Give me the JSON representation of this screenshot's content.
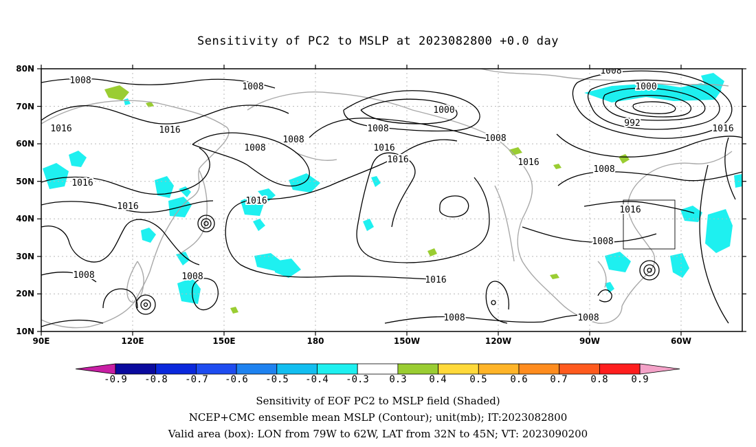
{
  "title": "Sensitivity of PC2 to MSLP at 2023082800 +0.0 day",
  "map": {
    "lat_labels": [
      "80N",
      "70N",
      "60N",
      "50N",
      "40N",
      "30N",
      "20N",
      "10N"
    ],
    "lon_labels": [
      "90E",
      "120E",
      "150E",
      "180",
      "150W",
      "120W",
      "90W",
      "60W"
    ],
    "lon_range_deg": [
      90,
      320
    ],
    "lat_range_deg": [
      10,
      80
    ],
    "grid": "dotted",
    "valid_box": {
      "lon": [
        "79W",
        "62W"
      ],
      "lat": [
        "32N",
        "45N"
      ]
    },
    "contour_labels": [
      "1008",
      "1008",
      "1000",
      "992",
      "1008",
      "1016",
      "1016",
      "1016",
      "1008",
      "1016",
      "1008",
      "1008",
      "1016",
      "1016",
      "1008",
      "1016",
      "1016",
      "1008",
      "1016",
      "1008",
      "1008",
      "1016",
      "1008",
      "1016",
      "1008",
      "1008",
      "1000",
      "1008"
    ]
  },
  "colorbar": {
    "ticks": [
      "-0.9",
      "-0.8",
      "-0.7",
      "-0.6",
      "-0.5",
      "-0.4",
      "-0.3",
      "0.3",
      "0.4",
      "0.5",
      "0.6",
      "0.7",
      "0.8",
      "0.9"
    ],
    "colors": [
      "#c81fa4",
      "#0a0a9e",
      "#0a28dc",
      "#1e4cf0",
      "#1e82f0",
      "#12bef0",
      "#1ef0f0",
      "#ffffff",
      "#9acd32",
      "#ffd93a",
      "#ffb428",
      "#ff8c1e",
      "#ff5a1e",
      "#ff1e1e",
      "#f4a2c8"
    ]
  },
  "captions": {
    "line1": "Sensitivity of EOF PC2 to MSLP field (Shaded)",
    "line2": "NCEP+CMC ensemble mean MSLP (Contour); unit(mb); IT:2023082800",
    "line3": "Valid area (box): LON from 79W to 62W, LAT from 32N to 45N; VT: 2023090200"
  }
}
